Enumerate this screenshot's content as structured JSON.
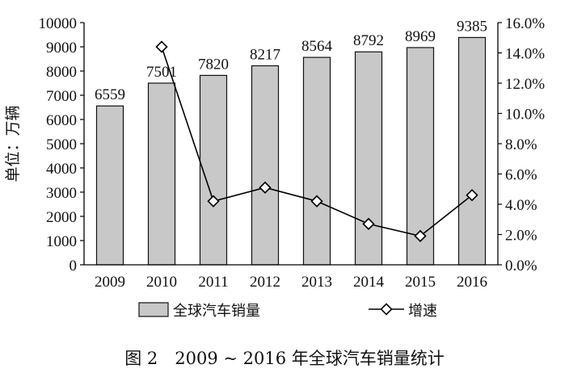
{
  "chart_data": {
    "type": "bar",
    "categories": [
      "2009",
      "2010",
      "2011",
      "2012",
      "2013",
      "2014",
      "2015",
      "2016"
    ],
    "series": [
      {
        "name": "全球汽车销量",
        "type": "bar",
        "axis": "left",
        "values": [
          6559,
          7501,
          7820,
          8217,
          8564,
          8792,
          8969,
          9385
        ],
        "color": "#c8c8c8"
      },
      {
        "name": "增速",
        "type": "line",
        "axis": "right",
        "values": [
          null,
          14.4,
          4.2,
          5.1,
          4.2,
          2.7,
          1.9,
          4.6
        ],
        "color": "#000000"
      }
    ],
    "ylabel": "单位：万辆",
    "ylim": [
      0,
      10000
    ],
    "y2lim": [
      0,
      16
    ],
    "yticks": [
      "0",
      "1000",
      "2000",
      "3000",
      "4000",
      "5000",
      "6000",
      "7000",
      "8000",
      "9000",
      "10000"
    ],
    "y2ticks": [
      "0.0%",
      "2.0%",
      "4.0%",
      "6.0%",
      "8.0%",
      "10.0%",
      "12.0%",
      "14.0%",
      "16.0%"
    ],
    "data_labels": [
      "6559",
      "7501",
      "7820",
      "8217",
      "8564",
      "8792",
      "8969",
      "9385"
    ],
    "legend_position": "bottom",
    "grid": false
  },
  "caption": "图 2　2009 ~ 2016 年全球汽车销量统计"
}
